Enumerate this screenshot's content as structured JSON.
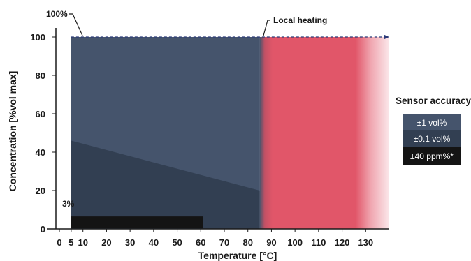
{
  "chart_data": {
    "type": "area",
    "xlabel": "Temperature [°C]",
    "ylabel": "Concentration [%vol max]",
    "xlim": [
      -3,
      140
    ],
    "ylim": [
      0,
      100
    ],
    "x_ticks": [
      0,
      5,
      10,
      20,
      30,
      40,
      50,
      60,
      70,
      80,
      90,
      100,
      110,
      120,
      130
    ],
    "y_ticks": [
      0,
      20,
      40,
      60,
      80,
      100
    ],
    "regions": [
      {
        "name": "±1 vol%",
        "x": [
          5,
          85
        ],
        "y_top": 100,
        "color": "#45546c"
      },
      {
        "name": "±0.1 vol%",
        "x": [
          5,
          85
        ],
        "y_top_start": 46,
        "y_top_end": 20,
        "color": "#323f52"
      },
      {
        "name": "±40 ppm%*",
        "x": [
          5,
          61
        ],
        "y_bottom": 0.3,
        "y_top": 6.5,
        "color": "#141414"
      },
      {
        "name": "Local heating",
        "x": [
          85,
          140
        ],
        "y_top": 100,
        "color": "#e15669"
      }
    ],
    "annotations": {
      "top_label": "100%",
      "local_heating": "Local heating",
      "low_label": "3%"
    },
    "legend": {
      "title": "Sensor accuracy",
      "position": "right",
      "items": [
        {
          "label": "±1 vol%",
          "color": "#45546c"
        },
        {
          "label": "±0.1 vol%",
          "color": "#323f52"
        },
        {
          "label": "±40 ppm%*",
          "color": "#141414"
        }
      ]
    }
  }
}
